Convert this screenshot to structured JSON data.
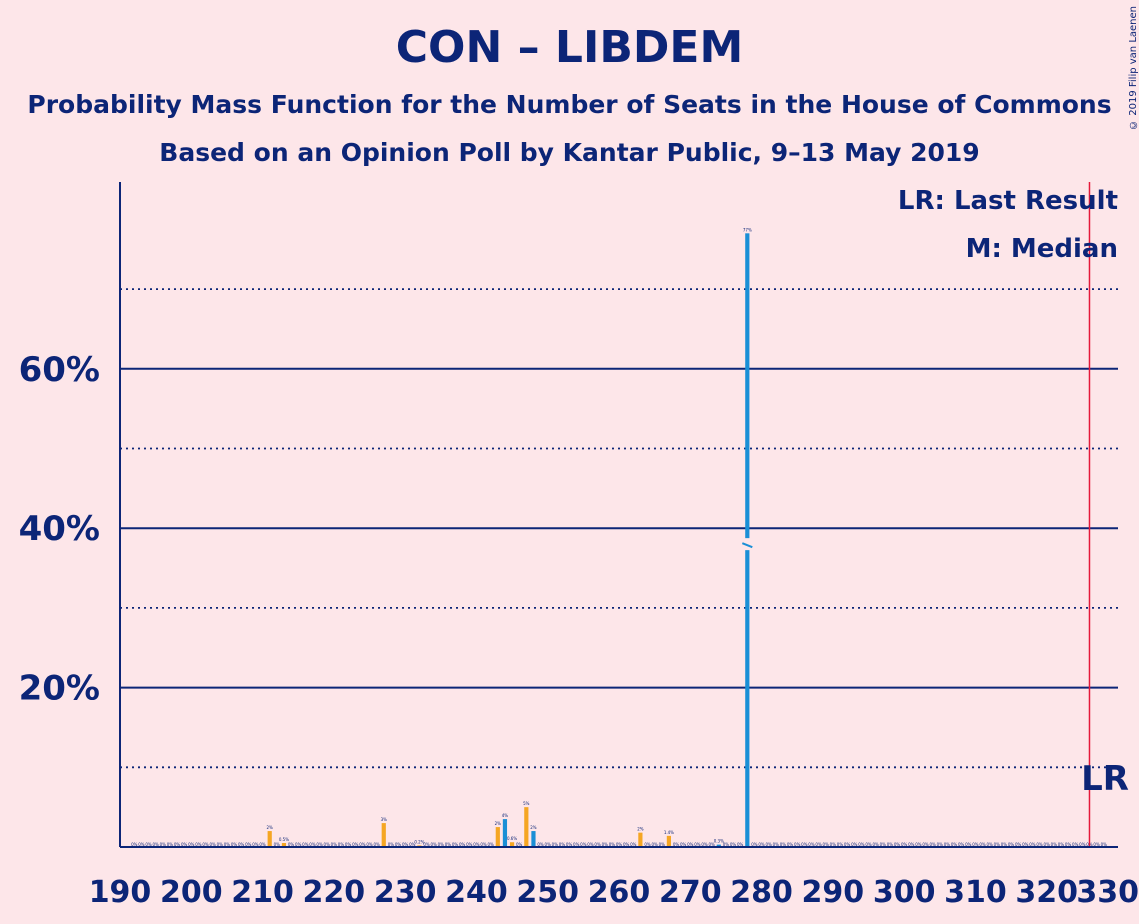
{
  "header": {
    "title": "CON – LIBDEM",
    "subtitle1": "Probability Mass Function for the Number of Seats in the House of Commons",
    "subtitle2": "Based on an Opinion Poll by Kantar Public, 9–13 May 2019",
    "copyright": "© 2019 Filip van Laenen"
  },
  "legend": {
    "last_result": "LR: Last Result",
    "median": "M: Median",
    "lr_marker": "LR"
  },
  "colors": {
    "background": "#fde6e9",
    "text": "#0c2577",
    "bar_orange": "#f5a623",
    "bar_blue": "#1a8fd6",
    "last_result_line": "#e5183a"
  },
  "chart_data": {
    "type": "bar",
    "xlabel": "",
    "ylabel": "",
    "xlim": [
      190,
      330
    ],
    "ylim": [
      0,
      83
    ],
    "x_ticks": [
      "190",
      "200",
      "210",
      "220",
      "230",
      "240",
      "250",
      "260",
      "270",
      "280",
      "290",
      "300",
      "310",
      "320",
      "330"
    ],
    "y_ticks": [
      {
        "value": 20,
        "label": "20%"
      },
      {
        "value": 40,
        "label": "40%"
      },
      {
        "value": 60,
        "label": "60%"
      }
    ],
    "grid_solid": [
      20,
      40,
      60
    ],
    "grid_dotted": [
      10,
      30,
      50,
      70
    ],
    "last_result": 326,
    "median": 278,
    "series": [
      {
        "color": "orange",
        "values": [
          {
            "x": 211,
            "y": 2,
            "label": "2%"
          },
          {
            "x": 213,
            "y": 0.5,
            "label": "0.5%"
          },
          {
            "x": 227,
            "y": 3,
            "label": "3%"
          },
          {
            "x": 232,
            "y": 0.2,
            "label": "0.2%"
          },
          {
            "x": 243,
            "y": 2.5,
            "label": "2%"
          },
          {
            "x": 245,
            "y": 0.6,
            "label": "0.6%"
          },
          {
            "x": 247,
            "y": 5,
            "label": "5%"
          },
          {
            "x": 263,
            "y": 1.8,
            "label": "2%"
          },
          {
            "x": 267,
            "y": 1.4,
            "label": "1.4%"
          }
        ]
      },
      {
        "color": "blue",
        "values": [
          {
            "x": 244,
            "y": 3.5,
            "label": "4%"
          },
          {
            "x": 248,
            "y": 2,
            "label": "2%"
          },
          {
            "x": 274,
            "y": 0.3,
            "label": "0.3%"
          },
          {
            "x": 278,
            "y": 77,
            "label": "77%"
          }
        ]
      }
    ]
  }
}
